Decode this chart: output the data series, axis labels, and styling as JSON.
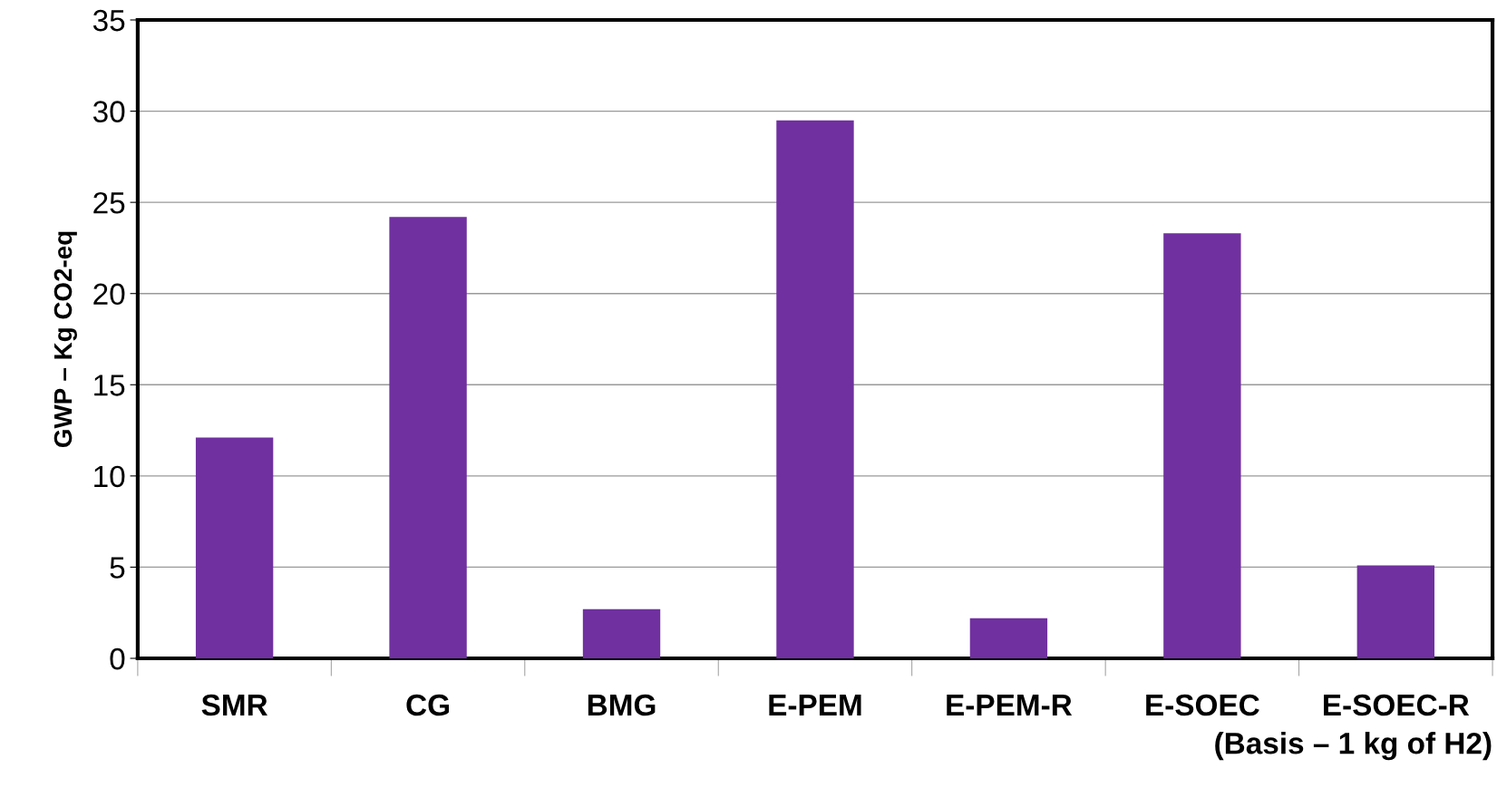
{
  "chart_data": {
    "type": "bar",
    "ylabel": "GWP – Kg CO2-eq",
    "xlabel": "(Basis – 1 kg of H2)",
    "categories": [
      "SMR",
      "CG",
      "BMG",
      "E-PEM",
      "E-PEM-R",
      "E-SOEC",
      "E-SOEC-R"
    ],
    "values": [
      12.1,
      24.2,
      2.7,
      29.5,
      2.2,
      23.3,
      5.1
    ],
    "color": "#7030a0",
    "ylim": [
      0,
      35
    ],
    "yticks": [
      0,
      5,
      10,
      15,
      20,
      25,
      30,
      35
    ],
    "grid": "y",
    "legend": false
  }
}
